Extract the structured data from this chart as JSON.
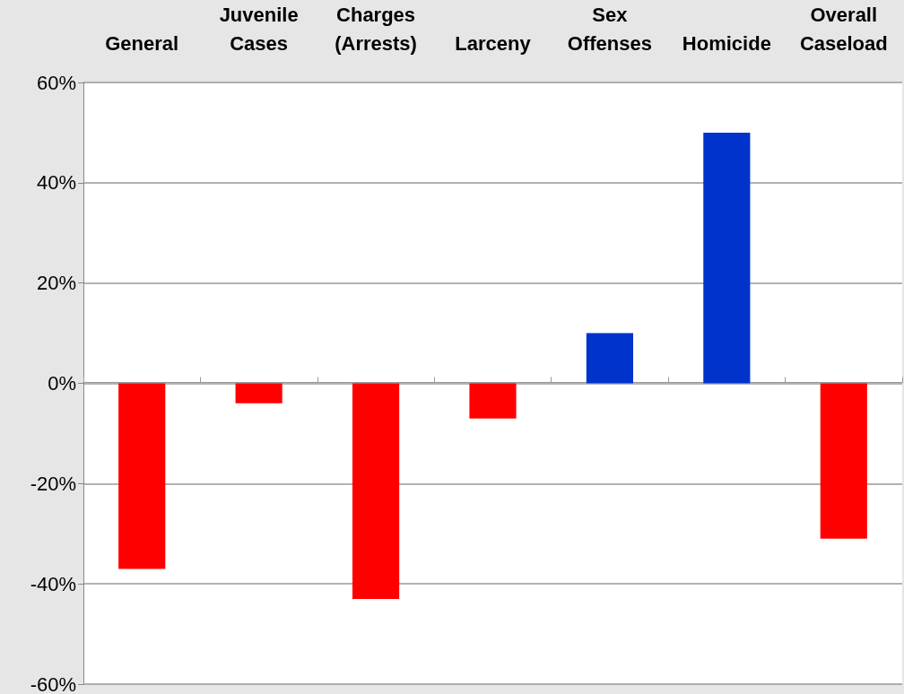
{
  "chart_data": {
    "type": "bar",
    "categories": [
      "General",
      "Juvenile\nCases",
      "Charges\n(Arrests)",
      "Larceny",
      "Sex\nOffenses",
      "Homicide",
      "Overall\nCaseload"
    ],
    "values": [
      -37,
      -4,
      -43,
      -7,
      10,
      50,
      -31
    ],
    "colors": [
      "#ff0000",
      "#ff0000",
      "#ff0000",
      "#ff0000",
      "#0033cc",
      "#0033cc",
      "#ff0000"
    ],
    "ylim": [
      -60,
      60
    ],
    "yticks": [
      {
        "value": -60,
        "label": "-60%"
      },
      {
        "value": -40,
        "label": "-40%"
      },
      {
        "value": -20,
        "label": "-20%"
      },
      {
        "value": 0,
        "label": "0%"
      },
      {
        "value": 20,
        "label": "20%"
      },
      {
        "value": 40,
        "label": "40%"
      },
      {
        "value": 60,
        "label": "60%"
      }
    ],
    "grid": "y"
  }
}
